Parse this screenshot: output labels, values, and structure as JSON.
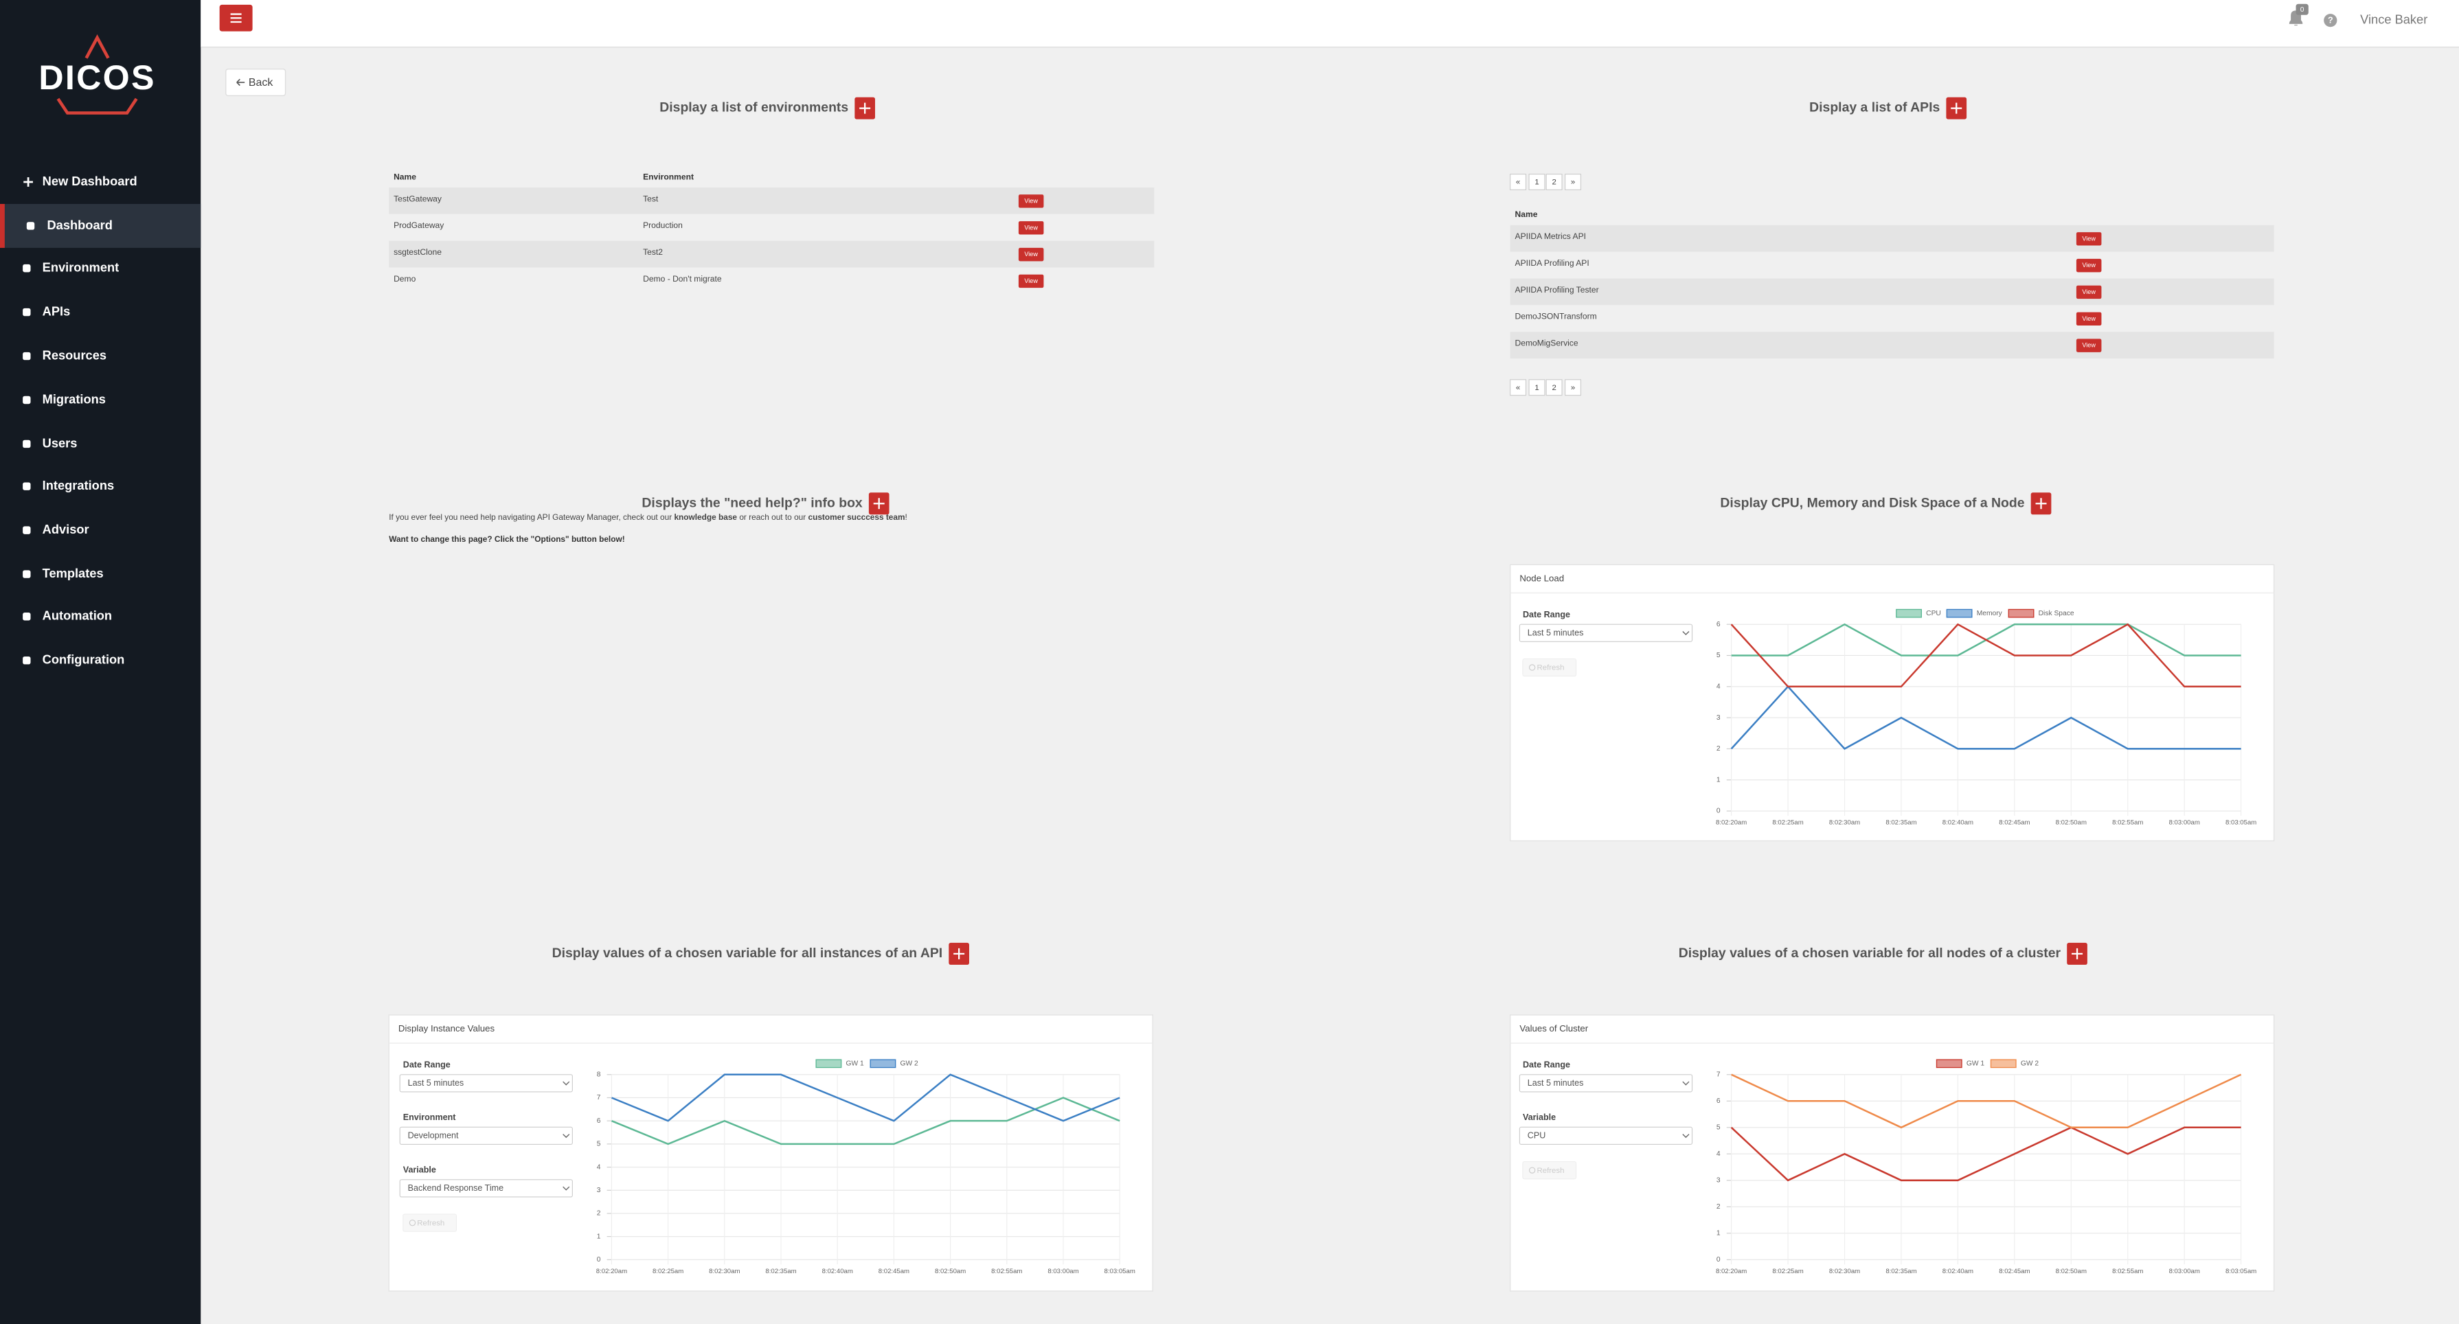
{
  "sidebar": {
    "logo": "DICOS",
    "menu": [
      "New Dashboard",
      "Dashboard",
      "Environment",
      "APIs",
      "Resources",
      "Migrations",
      "Users",
      "Integrations",
      "Advisor",
      "Templates",
      "Automation",
      "Configuration"
    ]
  },
  "header": {
    "notifications": 0,
    "help": "?",
    "user": "Vince Baker"
  },
  "back": "Back",
  "widgets": [
    {
      "title": "Display a list of environments",
      "table": {
        "columns": [
          "Name",
          "Environment"
        ],
        "rows": [
          [
            "TestGateway",
            "Test"
          ],
          [
            "ProdGateway",
            "Production"
          ],
          [
            "ssgtestClone",
            "Test2"
          ],
          [
            "Demo",
            "Demo - Don't migrate"
          ]
        ],
        "action": "View"
      }
    },
    {
      "title": "Display a list of APIs",
      "pagination": [
        "«",
        "1",
        "2",
        "»"
      ],
      "table": {
        "columns": [
          "Name"
        ],
        "rows": [
          [
            "APIIDA Metrics API"
          ],
          [
            "APIIDA Profiling API"
          ],
          [
            "APIIDA Profiling Tester"
          ],
          [
            "DemoJSONTransform"
          ],
          [
            "DemoMigService"
          ]
        ],
        "action": "View"
      }
    },
    {
      "title": "Displays the \"need help?\" info box",
      "text": [
        "If you ever feel you need help navigating API Gateway Manager, check out our ",
        "knowledge base",
        " or reach out to our ",
        "customer succcess team",
        "!"
      ],
      "note": "Want to change this page? Click the \"Options\" button below!"
    },
    {
      "title": "Display CPU, Memory and Disk Space of a Node",
      "form": [
        {
          "label": "Date Range",
          "value": "Last 5 minutes"
        }
      ],
      "refresh": "Refresh"
    },
    {
      "title": "Display values of a chosen variable for all instances of an API",
      "form": [
        {
          "label": "Date Range",
          "value": "Last 5 minutes"
        },
        {
          "label": "Environment",
          "value": "Development"
        },
        {
          "label": "Variable",
          "value": "Backend Response Time"
        }
      ],
      "refresh": "Refresh"
    },
    {
      "title": "Display values of a chosen variable for all nodes of a cluster",
      "form": [
        {
          "label": "Date Range",
          "value": "Last 5 minutes"
        },
        {
          "label": "Variable",
          "value": "CPU"
        }
      ],
      "refresh": "Refresh"
    }
  ],
  "chart_data": [
    {
      "type": "line",
      "title": "Node Load",
      "categories": [
        "8:02:20am",
        "8:02:25am",
        "8:02:30am",
        "8:02:35am",
        "8:02:40am",
        "8:02:45am",
        "8:02:50am",
        "8:02:55am",
        "8:03:00am",
        "8:03:05am"
      ],
      "series": [
        {
          "name": "CPU",
          "color": "#5cb894",
          "values": [
            5,
            5,
            6,
            5,
            5,
            6,
            6,
            6,
            5,
            5
          ]
        },
        {
          "name": "Memory",
          "color": "#3b7fc4",
          "values": [
            2,
            4,
            2,
            3,
            2,
            2,
            3,
            2,
            2,
            2
          ]
        },
        {
          "name": "Disk Space",
          "color": "#c9392e",
          "values": [
            6,
            4,
            4,
            4,
            6,
            5,
            5,
            6,
            4,
            4
          ]
        }
      ],
      "ylim": [
        0,
        6
      ],
      "yticks": [
        0,
        1,
        2,
        3,
        4,
        5,
        6
      ],
      "grid": true
    },
    {
      "type": "line",
      "title": "Display Instance Values",
      "categories": [
        "8:02:20am",
        "8:02:25am",
        "8:02:30am",
        "8:02:35am",
        "8:02:40am",
        "8:02:45am",
        "8:02:50am",
        "8:02:55am",
        "8:03:00am",
        "8:03:05am"
      ],
      "series": [
        {
          "name": "GW 1",
          "color": "#5cb894",
          "values": [
            6,
            5,
            6,
            5,
            5,
            5,
            6,
            6,
            7,
            6
          ]
        },
        {
          "name": "GW 2",
          "color": "#3b7fc4",
          "values": [
            7,
            6,
            8,
            8,
            7,
            6,
            8,
            7,
            6,
            7
          ]
        }
      ],
      "ylim": [
        0,
        8
      ],
      "yticks": [
        0,
        1,
        2,
        3,
        4,
        5,
        6,
        7,
        8
      ],
      "grid": true
    },
    {
      "type": "line",
      "title": "Values of Cluster",
      "categories": [
        "8:02:20am",
        "8:02:25am",
        "8:02:30am",
        "8:02:35am",
        "8:02:40am",
        "8:02:45am",
        "8:02:50am",
        "8:02:55am",
        "8:03:00am",
        "8:03:05am"
      ],
      "series": [
        {
          "name": "GW 1",
          "color": "#c9392e",
          "values": [
            5,
            3,
            4,
            3,
            3,
            4,
            5,
            4,
            5,
            5
          ]
        },
        {
          "name": "GW 2",
          "color": "#ef8a4a",
          "values": [
            7,
            6,
            6,
            5,
            6,
            6,
            5,
            5,
            6,
            7
          ]
        }
      ],
      "ylim": [
        0,
        7
      ],
      "yticks": [
        0,
        1,
        2,
        3,
        4,
        5,
        6,
        7
      ],
      "grid": true
    }
  ]
}
